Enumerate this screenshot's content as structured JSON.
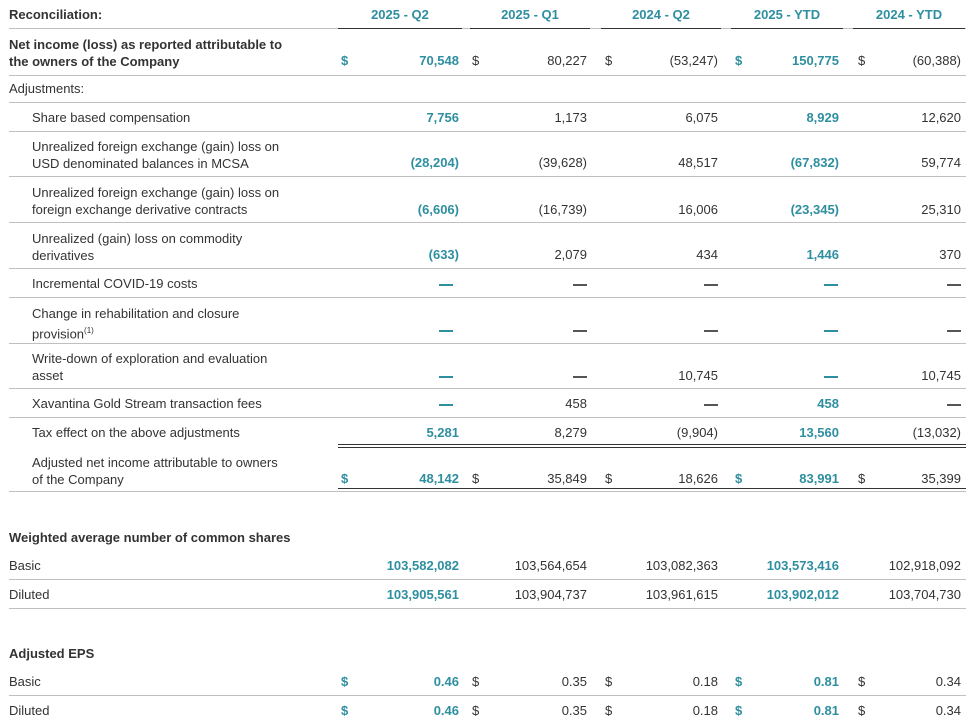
{
  "header": {
    "label": "Reconciliation:",
    "columns": [
      "2025 - Q2",
      "2025 - Q1",
      "2024 - Q2",
      "2025 - YTD",
      "2024 - YTD"
    ]
  },
  "currency_symbol": "$",
  "rows": {
    "net_income": {
      "label_line1": "Net income (loss) as reported attributable to",
      "label_line2": "the owners of the Company",
      "values": [
        "70,548",
        "80,227",
        "(53,247)",
        "150,775",
        "(60,388)"
      ]
    },
    "adjustments": {
      "label": "Adjustments:"
    },
    "share_comp": {
      "label": "Share based compensation",
      "values": [
        "7,756",
        "1,173",
        "6,075",
        "8,929",
        "12,620"
      ]
    },
    "fx_usd": {
      "label_line1": "Unrealized foreign exchange (gain) loss on",
      "label_line2": "USD denominated balances in MCSA",
      "values": [
        "(28,204)",
        "(39,628)",
        "48,517",
        "(67,832)",
        "59,774"
      ]
    },
    "fx_deriv": {
      "label_line1": "Unrealized foreign exchange (gain) loss on",
      "label_line2": "foreign exchange derivative contracts",
      "values": [
        "(6,606)",
        "(16,739)",
        "16,006",
        "(23,345)",
        "25,310"
      ]
    },
    "commodity": {
      "label_line1": "Unrealized (gain) loss on commodity",
      "label_line2": "derivatives",
      "values": [
        "(633)",
        "2,079",
        "434",
        "1,446",
        "370"
      ]
    },
    "covid": {
      "label": "Incremental COVID-19 costs",
      "values": [
        "—",
        "—",
        "—",
        "—",
        "—"
      ]
    },
    "rehab": {
      "label_line1": "Change in rehabilitation and closure",
      "label_line2": "provision",
      "footnote": "(1)",
      "values": [
        "—",
        "—",
        "—",
        "—",
        "—"
      ]
    },
    "writedown": {
      "label_line1": "Write-down of exploration and evaluation",
      "label_line2": "asset",
      "values": [
        "—",
        "—",
        "10,745",
        "—",
        "10,745"
      ]
    },
    "xavantina": {
      "label": "Xavantina Gold Stream transaction fees",
      "values": [
        "—",
        "458",
        "—",
        "458",
        "—"
      ]
    },
    "tax": {
      "label": "Tax effect on the above adjustments",
      "values": [
        "5,281",
        "8,279",
        "(9,904)",
        "13,560",
        "(13,032)"
      ]
    },
    "adjusted_net": {
      "label_line1": "Adjusted net income attributable to owners",
      "label_line2": "of the Company",
      "values": [
        "48,142",
        "35,849",
        "18,626",
        "83,991",
        "35,399"
      ]
    }
  },
  "shares": {
    "title": "Weighted average number of common shares",
    "basic": {
      "label": "Basic",
      "values": [
        "103,582,082",
        "103,564,654",
        "103,082,363",
        "103,573,416",
        "102,918,092"
      ]
    },
    "diluted": {
      "label": "Diluted",
      "values": [
        "103,905,561",
        "103,904,737",
        "103,961,615",
        "103,902,012",
        "103,704,730"
      ]
    }
  },
  "eps": {
    "title": "Adjusted EPS",
    "basic": {
      "label": "Basic",
      "values": [
        "0.46",
        "0.35",
        "0.18",
        "0.81",
        "0.34"
      ]
    },
    "diluted": {
      "label": "Diluted",
      "values": [
        "0.46",
        "0.35",
        "0.18",
        "0.81",
        "0.34"
      ]
    }
  },
  "colors": {
    "accent": "#2e8fa0",
    "text": "#333333",
    "rule": "#bfbfbf"
  }
}
